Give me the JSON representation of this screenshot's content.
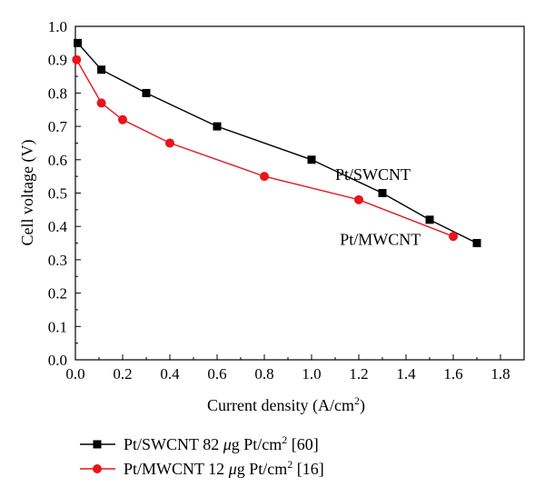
{
  "chart_data": {
    "type": "line",
    "xlabel": "Current density (A/cm",
    "xlabel_sup": "2",
    "xlabel_end": ")",
    "ylabel": "Cell voltage (V)",
    "xlim": [
      0,
      1.9
    ],
    "ylim": [
      0,
      1.0
    ],
    "xticks": [
      0.0,
      0.2,
      0.4,
      0.6,
      0.8,
      1.0,
      1.2,
      1.4,
      1.6,
      1.8
    ],
    "xtick_labels": [
      "0.0",
      "0.2",
      "0.4",
      "0.6",
      "0.8",
      "1.0",
      "1.2",
      "1.4",
      "1.6",
      "1.8"
    ],
    "yticks": [
      0.0,
      0.1,
      0.2,
      0.3,
      0.4,
      0.5,
      0.6,
      0.7,
      0.8,
      0.9,
      1.0
    ],
    "ytick_labels": [
      "0.0",
      "0.1",
      "0.2",
      "0.3",
      "0.4",
      "0.5",
      "0.6",
      "0.7",
      "0.8",
      "0.9",
      "1.0"
    ],
    "grid": false,
    "legend_position": "bottom",
    "series": [
      {
        "name": "Pt/SWCNT 82 μg Pt/cm² [60]",
        "legend_parts": [
          "Pt/SWCNT 82 ",
          "μ",
          "g Pt/cm",
          "2",
          " [60]"
        ],
        "color": "#000000",
        "marker": "square",
        "x": [
          0.01,
          0.11,
          0.3,
          0.6,
          1.0,
          1.3,
          1.5,
          1.7
        ],
        "y": [
          0.95,
          0.87,
          0.8,
          0.7,
          0.6,
          0.5,
          0.42,
          0.35
        ]
      },
      {
        "name": "Pt/MWCNT 12 μg Pt/cm² [16]",
        "legend_parts": [
          "Pt/MWCNT 12 ",
          "μ",
          "g Pt/cm",
          "2",
          " [16]"
        ],
        "color": "#e8141a",
        "marker": "circle",
        "x": [
          0.005,
          0.11,
          0.2,
          0.4,
          0.8,
          1.2,
          1.6
        ],
        "y": [
          0.9,
          0.77,
          0.72,
          0.65,
          0.55,
          0.48,
          0.37
        ]
      }
    ],
    "annotations": [
      {
        "text": "Pt/SWCNT",
        "x": 1.1,
        "y": 0.54
      },
      {
        "text": "Pt/MWCNT",
        "x": 1.12,
        "y": 0.345
      }
    ]
  }
}
